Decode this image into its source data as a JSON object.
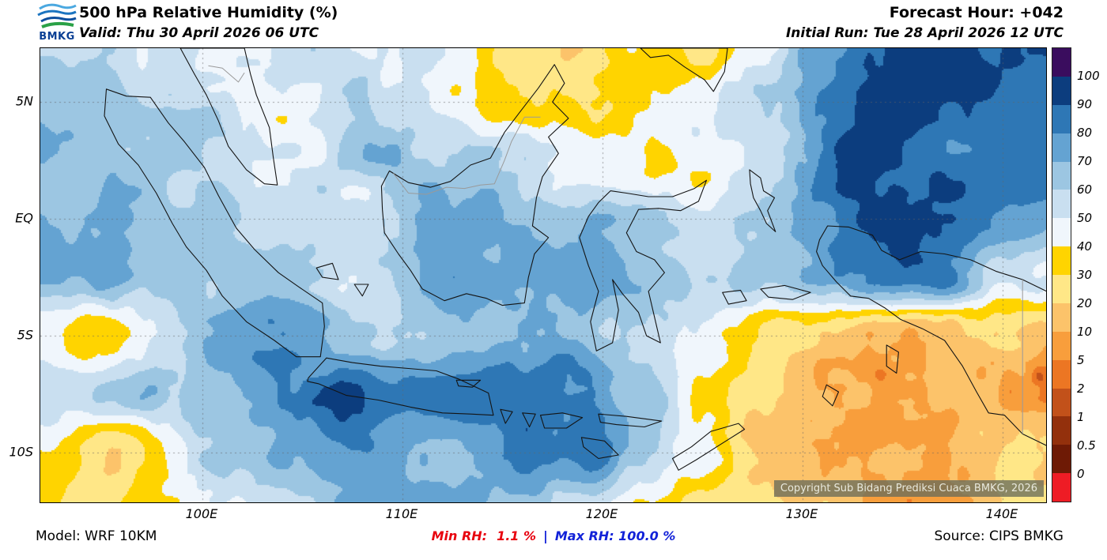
{
  "header": {
    "logo_text": "BMKG",
    "title": "500 hPa Relative Humidity (%)",
    "valid": "Valid: Thu 30 April 2026 06 UTC",
    "forecast_hour": "Forecast Hour: +042",
    "initial_run": "Initial Run: Tue 28 April 2026 12 UTC"
  },
  "map": {
    "x_ticks": [
      "100E",
      "110E",
      "120E",
      "130E",
      "140E"
    ],
    "y_ticks": [
      "5N",
      "EQ",
      "5S",
      "10S"
    ],
    "watermark": "Copyright Sub Bidang Prediksi Cuaca BMKG, 2026"
  },
  "colorbar": {
    "labels": [
      "100",
      "90",
      "80",
      "70",
      "60",
      "50",
      "40",
      "30",
      "20",
      "10",
      "5",
      "2",
      "1",
      "0.5",
      "0"
    ],
    "colors_top_to_bottom": [
      "#3a0d5e",
      "#0c3d7e",
      "#2e77b5",
      "#64a3d2",
      "#9cc6e2",
      "#c9dff0",
      "#f0f6fc",
      "#ffd400",
      "#ffe787",
      "#fcc36a",
      "#f89e3c",
      "#ec7623",
      "#c2511a",
      "#93300c",
      "#6e1a05",
      "#ee1c25"
    ]
  },
  "footer": {
    "model": "Model: WRF 10KM",
    "min_rh_label": "Min RH:",
    "min_rh_value": "1.1 %",
    "separator": "|",
    "max_rh_label": "Max RH:",
    "max_rh_value": "100.0 %",
    "source": "Source: CIPS BMKG",
    "min_color": "#e8000d",
    "max_color": "#1222d8"
  },
  "chart_data": {
    "type": "heatmap",
    "title": "500 hPa Relative Humidity (%)",
    "units": "%",
    "lon_range": [
      91.9,
      142.18
    ],
    "lat_range": [
      -12.16,
      7.3
    ],
    "x_tick_lons": [
      100,
      110,
      120,
      130,
      140
    ],
    "y_tick_lats": [
      5,
      0,
      -5,
      -10
    ],
    "levels": [
      0,
      0.5,
      1,
      2,
      5,
      10,
      20,
      30,
      40,
      50,
      60,
      70,
      80,
      90,
      100
    ],
    "grid_lons": [
      92,
      95,
      98,
      101,
      104,
      107,
      110,
      113,
      116,
      119,
      122,
      125,
      128,
      131,
      134,
      137,
      140
    ],
    "grid_lats": [
      7.5,
      5,
      2.5,
      0,
      -2.5,
      -5,
      -7.5,
      -10,
      -12.5
    ],
    "rh_values": [
      [
        72,
        65,
        55,
        50,
        44,
        48,
        46,
        38,
        28,
        22,
        30,
        35,
        48,
        72,
        88,
        95,
        90
      ],
      [
        70,
        60,
        55,
        50,
        48,
        52,
        48,
        42,
        30,
        24,
        35,
        45,
        60,
        80,
        92,
        97,
        90
      ],
      [
        70,
        62,
        58,
        55,
        55,
        60,
        65,
        60,
        55,
        45,
        38,
        40,
        60,
        80,
        88,
        92,
        88
      ],
      [
        78,
        70,
        62,
        68,
        60,
        58,
        65,
        72,
        70,
        72,
        70,
        60,
        65,
        75,
        88,
        85,
        80
      ],
      [
        80,
        78,
        72,
        70,
        62,
        58,
        68,
        75,
        78,
        80,
        70,
        62,
        68,
        78,
        88,
        80,
        45
      ],
      [
        40,
        32,
        55,
        80,
        85,
        65,
        58,
        60,
        65,
        70,
        60,
        45,
        35,
        22,
        12,
        10,
        18
      ],
      [
        48,
        55,
        65,
        75,
        85,
        90,
        88,
        85,
        82,
        80,
        70,
        45,
        28,
        12,
        5,
        3,
        8
      ],
      [
        32,
        28,
        40,
        60,
        72,
        75,
        70,
        68,
        75,
        82,
        60,
        35,
        20,
        15,
        12,
        12,
        15
      ],
      [
        28,
        30,
        38,
        45,
        62,
        70,
        72,
        68,
        62,
        55,
        40,
        25,
        18,
        14,
        13,
        15,
        18
      ]
    ],
    "min_rh": 1.1,
    "max_rh": 100.0
  }
}
